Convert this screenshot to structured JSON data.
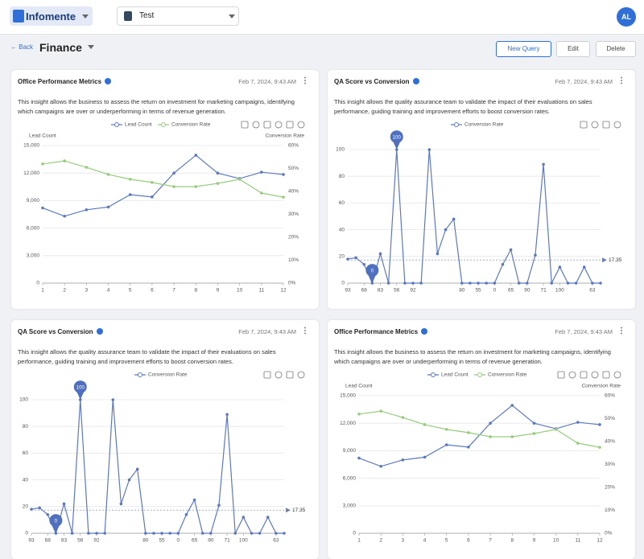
{
  "header": {
    "brand": "Infomente",
    "workspace": "Test",
    "avatar": "AL"
  },
  "toolbar": {
    "back": "Back",
    "title": "Finance",
    "buttons": [
      "New Query",
      "Edit",
      "Delete"
    ]
  },
  "cards": [
    {
      "title": "Office Performance Metrics",
      "date": "Feb 7, 2024, 9:43 AM",
      "description": "This insight allows the business to assess the return on investment for marketing campaigns, identifying which campaigns are over or underperforming in terms of revenue generation.",
      "chart": {
        "type": "line",
        "y_label": "Lead Count",
        "y2_label": "Conversion Rate",
        "categories": [
          "1",
          "2",
          "3",
          "4",
          "5",
          "6",
          "7",
          "8",
          "9",
          "10",
          "11",
          "12"
        ],
        "series": [
          {
            "name": "Lead Count",
            "color": "#5b78c2",
            "values": [
              8200,
              7300,
              8000,
              8300,
              9650,
              9400,
              12000,
              13950,
              12000,
              11400,
              12100,
              11850
            ]
          },
          {
            "name": "Conversion Rate",
            "color": "#96cc7e",
            "axis": "y2",
            "values": [
              52,
              53.3,
              50.5,
              47.4,
              45.3,
              43.9,
              42.1,
              42.1,
              43.5,
              45.3,
              39.3,
              37.5
            ]
          }
        ],
        "ylim": [
          0,
          15000
        ],
        "yticks": [
          0,
          {
            "value": 3000,
            "label": "3,000"
          },
          {
            "value": 6000,
            "label": "6,000"
          },
          {
            "value": 9000,
            "label": "9,000"
          },
          {
            "value": 12000,
            "label": "12,000"
          },
          {
            "value": 15000,
            "label": "15,000"
          }
        ],
        "y2lim": [
          0,
          60
        ],
        "y2ticks": [
          {
            "value": 0,
            "label": "0%"
          },
          {
            "value": 10,
            "label": "10%"
          },
          {
            "value": 20,
            "label": "20%"
          },
          {
            "value": 30,
            "label": "30%"
          },
          {
            "value": 40,
            "label": "40%"
          },
          {
            "value": 50,
            "label": "50%"
          },
          {
            "value": 60,
            "label": "60%"
          }
        ],
        "grid": true
      }
    },
    {
      "title": "QA Score vs Conversion",
      "date": "Feb 7, 2024, 9:43 AM",
      "description": "This insight allows the quality assurance team to validate the impact of their evaluations on sales performance, guiding training and improvement efforts to boost conversion rates.",
      "chart": {
        "type": "line",
        "categories": [
          "93",
          null,
          "68",
          null,
          "83",
          null,
          "56",
          null,
          "92",
          null,
          null,
          null,
          null,
          null,
          "80",
          null,
          "55",
          null,
          "0",
          null,
          "65",
          null,
          "90",
          null,
          "71",
          null,
          "100",
          null,
          null,
          null,
          "63",
          null
        ],
        "series": [
          {
            "name": "Conversion Rate",
            "color": "#5b78c2",
            "values": [
              18,
              19,
              14,
              0,
              22,
              0,
              100,
              0,
              0,
              0,
              100,
              22,
              40,
              48,
              0,
              0,
              0,
              0,
              0,
              14,
              25,
              0,
              0,
              21,
              89,
              0,
              12,
              0,
              0,
              12,
              0,
              0
            ]
          }
        ],
        "ylim": [
          0,
          100
        ],
        "yticks": [
          0,
          20,
          40,
          60,
          80,
          100
        ],
        "grid": true,
        "pins": [
          6,
          3
        ],
        "reference_line": 17.35
      }
    },
    {
      "title": "QA Score vs Conversion",
      "date": "Feb 7, 2024, 9:43 AM",
      "description": "This insight allows the quality assurance team to validate the impact of their evaluations on sales performance, guiding training and improvement efforts to boost conversion rates.",
      "chart": {
        "type": "line",
        "categories": [
          "93",
          null,
          "68",
          null,
          "83",
          null,
          "56",
          null,
          "92",
          null,
          null,
          null,
          null,
          null,
          "80",
          null,
          "55",
          null,
          "0",
          null,
          "65",
          null,
          "90",
          null,
          "71",
          null,
          "100",
          null,
          null,
          null,
          "63",
          null
        ],
        "series": [
          {
            "name": "Conversion Rate",
            "color": "#5b78c2",
            "values": [
              18,
              19,
              14,
              0,
              22,
              0,
              100,
              0,
              0,
              0,
              100,
              22,
              40,
              48,
              0,
              0,
              0,
              0,
              0,
              14,
              25,
              0,
              0,
              21,
              89,
              0,
              12,
              0,
              0,
              12,
              0,
              0
            ]
          }
        ],
        "ylim": [
          0,
          100
        ],
        "yticks": [
          0,
          20,
          40,
          60,
          80,
          100
        ],
        "grid": true,
        "pins": [
          6,
          3
        ],
        "reference_line": 17.35
      }
    },
    {
      "title": "Office Performance Metrics",
      "date": "Feb 7, 2024, 9:43 AM",
      "description": "This insight allows the business to assess the return on investment for marketing campaigns, identifying which campaigns are over or underperforming in terms of revenue generation.",
      "chart": {
        "type": "line",
        "y_label": "Lead Count",
        "y2_label": "Conversion Rate",
        "categories": [
          "1",
          "2",
          "3",
          "4",
          "5",
          "6",
          "7",
          "8",
          "9",
          "10",
          "11",
          "12"
        ],
        "series": [
          {
            "name": "Lead Count",
            "color": "#5b78c2",
            "values": [
              8200,
              7300,
              8000,
              8300,
              9650,
              9400,
              12000,
              13950,
              12000,
              11400,
              12100,
              11850
            ]
          },
          {
            "name": "Conversion Rate",
            "color": "#96cc7e",
            "axis": "y2",
            "values": [
              52,
              53.3,
              50.5,
              47.4,
              45.3,
              43.9,
              42.1,
              42.1,
              43.5,
              45.3,
              39.3,
              37.5
            ]
          }
        ],
        "ylim": [
          0,
          15000
        ],
        "yticks": [
          0,
          {
            "value": 3000,
            "label": "3,000"
          },
          {
            "value": 6000,
            "label": "6,000"
          },
          {
            "value": 9000,
            "label": "9,000"
          },
          {
            "value": 12000,
            "label": "12,000"
          },
          {
            "value": 15000,
            "label": "15,000"
          }
        ],
        "y2lim": [
          0,
          60
        ],
        "y2ticks": [
          {
            "value": 0,
            "label": "0%"
          },
          {
            "value": 10,
            "label": "10%"
          },
          {
            "value": 20,
            "label": "20%"
          },
          {
            "value": 30,
            "label": "30%"
          },
          {
            "value": 40,
            "label": "40%"
          },
          {
            "value": 50,
            "label": "50%"
          },
          {
            "value": 60,
            "label": "60%"
          }
        ],
        "grid": true
      }
    }
  ]
}
